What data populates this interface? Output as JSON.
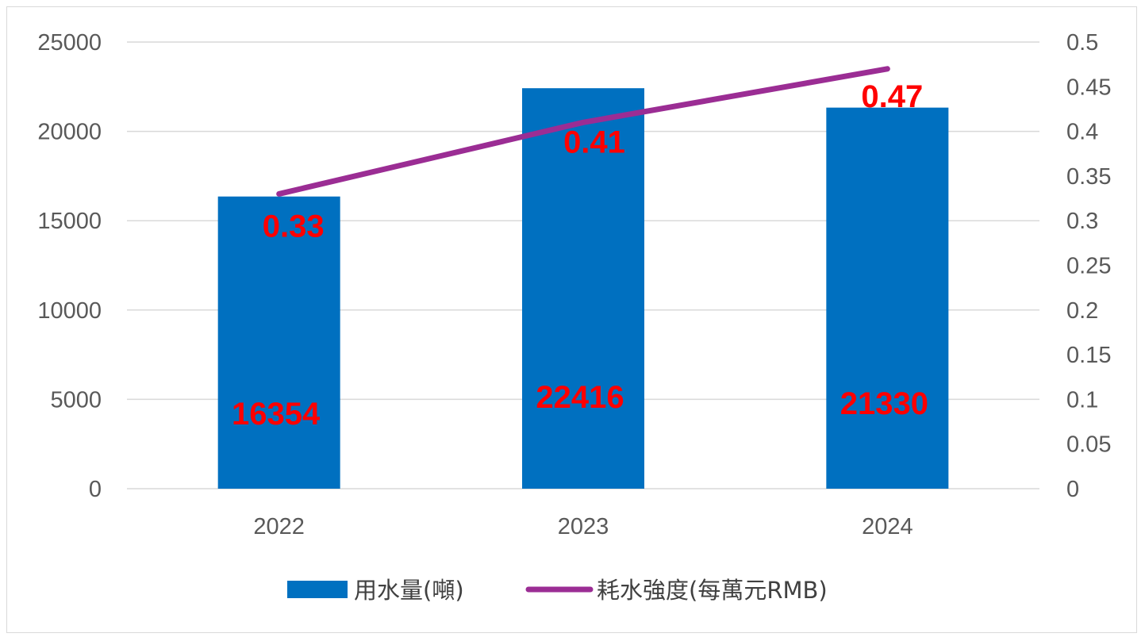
{
  "chart_data": {
    "type": "bar",
    "categories": [
      "2022",
      "2023",
      "2024"
    ],
    "series": [
      {
        "name": "用水量(噸)",
        "kind": "bar",
        "axis": "left",
        "color": "#0070c0",
        "values": [
          16354,
          22416,
          21330
        ],
        "labels": [
          "16354",
          "22416",
          "21330"
        ]
      },
      {
        "name": "耗水強度(每萬元RMB)",
        "kind": "line",
        "axis": "right",
        "color": "#9b2d94",
        "values": [
          0.33,
          0.41,
          0.47
        ],
        "labels": [
          "0.33",
          "0.41",
          "0.47"
        ]
      }
    ],
    "y_left": {
      "min": 0,
      "max": 25000,
      "ticks": [
        "0",
        "5000",
        "10000",
        "15000",
        "20000",
        "25000"
      ]
    },
    "y_right": {
      "min": 0,
      "max": 0.5,
      "ticks": [
        "0",
        "0.05",
        "0.1",
        "0.15",
        "0.2",
        "0.25",
        "0.3",
        "0.35",
        "0.4",
        "0.45",
        "0.5"
      ]
    },
    "grid": true,
    "legend_position": "bottom",
    "label_color": "#ff0000"
  }
}
